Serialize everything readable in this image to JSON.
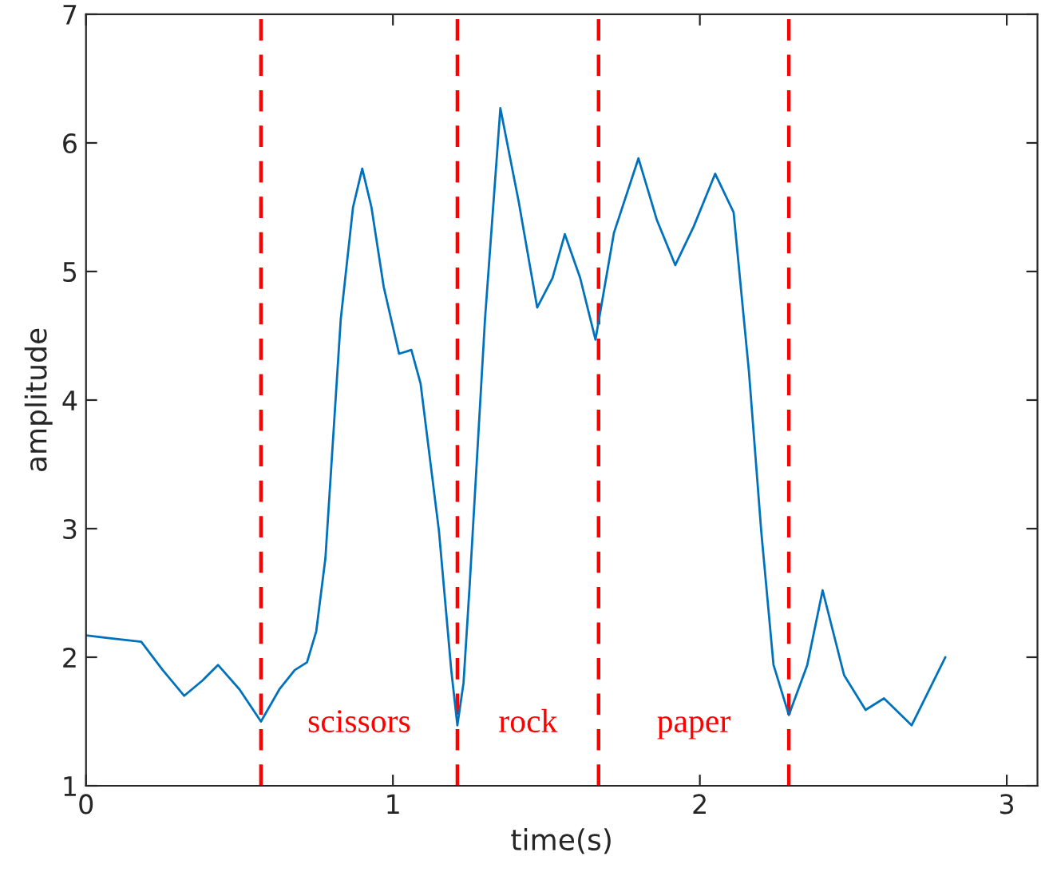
{
  "chart_data": {
    "type": "line",
    "xlabel": "time(s)",
    "ylabel": "amplitude",
    "x": [
      0,
      0.07,
      0.18,
      0.25,
      0.32,
      0.38,
      0.43,
      0.5,
      0.57,
      0.63,
      0.68,
      0.72,
      0.75,
      0.78,
      0.83,
      0.87,
      0.9,
      0.93,
      0.97,
      1.02,
      1.06,
      1.09,
      1.15,
      1.19,
      1.21,
      1.23,
      1.25,
      1.3,
      1.35,
      1.41,
      1.47,
      1.52,
      1.56,
      1.61,
      1.66,
      1.72,
      1.8,
      1.86,
      1.92,
      1.98,
      2.05,
      2.11,
      2.16,
      2.2,
      2.24,
      2.29,
      2.35,
      2.4,
      2.47,
      2.54,
      2.6,
      2.69,
      2.8
    ],
    "series": [
      {
        "color": "#0072bd",
        "values": [
          2.17,
          2.15,
          2.12,
          1.9,
          1.7,
          1.82,
          1.94,
          1.75,
          1.5,
          1.75,
          1.9,
          1.96,
          2.2,
          2.77,
          4.63,
          5.5,
          5.8,
          5.5,
          4.88,
          4.36,
          4.39,
          4.13,
          2.98,
          1.9,
          1.47,
          1.8,
          2.56,
          4.63,
          6.27,
          5.54,
          4.72,
          4.95,
          5.29,
          4.95,
          4.47,
          5.3,
          5.88,
          5.4,
          5.05,
          5.35,
          5.76,
          5.46,
          4.22,
          2.98,
          1.94,
          1.55,
          1.94,
          2.52,
          1.86,
          1.59,
          1.68,
          1.47,
          2.0
        ]
      }
    ],
    "xlim": [
      0,
      3.1
    ],
    "ylim": [
      1,
      7
    ],
    "xticks": [
      0,
      1,
      2,
      3
    ],
    "yticks": [
      1,
      2,
      3,
      4,
      5,
      6,
      7
    ],
    "grid": false,
    "legend": false,
    "ref_lines": [
      {
        "axis": "x",
        "value": 0.57,
        "color": "#ff0000",
        "line_style": "dashed"
      },
      {
        "axis": "x",
        "value": 1.21,
        "color": "#ff0000",
        "line_style": "dashed"
      },
      {
        "axis": "x",
        "value": 1.67,
        "color": "#ff0000",
        "line_style": "dashed"
      },
      {
        "axis": "x",
        "value": 2.29,
        "color": "#ff0000",
        "line_style": "dashed"
      }
    ],
    "annotations": [
      "scissors",
      "rock",
      "paper"
    ]
  }
}
